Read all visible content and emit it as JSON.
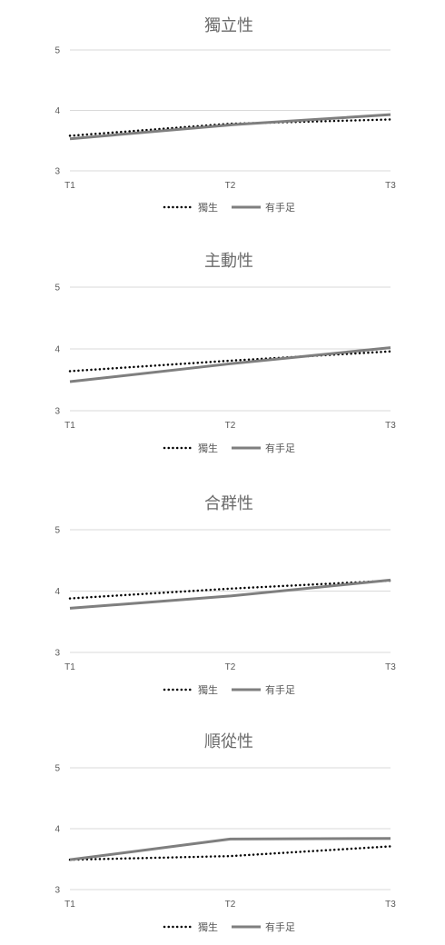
{
  "chart_data": [
    {
      "type": "line",
      "title": "獨立性",
      "categories": [
        "T1",
        "T2",
        "T3"
      ],
      "ylim": [
        3,
        5
      ],
      "yticks": [
        "3",
        "4",
        "5"
      ],
      "grid": true,
      "legend_position": "bottom",
      "series": [
        {
          "name": "獨生",
          "values": [
            3.58,
            3.78,
            3.85
          ],
          "style": "dotted",
          "color": "#000000"
        },
        {
          "name": "有手足",
          "values": [
            3.53,
            3.76,
            3.93
          ],
          "style": "solid",
          "color": "#7f7f7f"
        }
      ]
    },
    {
      "type": "line",
      "title": "主動性",
      "categories": [
        "T1",
        "T2",
        "T3"
      ],
      "ylim": [
        3,
        5
      ],
      "yticks": [
        "3",
        "4",
        "5"
      ],
      "grid": true,
      "legend_position": "bottom",
      "series": [
        {
          "name": "獨生",
          "values": [
            3.64,
            3.81,
            3.96
          ],
          "style": "dotted",
          "color": "#000000"
        },
        {
          "name": "有手足",
          "values": [
            3.47,
            3.76,
            4.02
          ],
          "style": "solid",
          "color": "#7f7f7f"
        }
      ]
    },
    {
      "type": "line",
      "title": "合群性",
      "categories": [
        "T1",
        "T2",
        "T3"
      ],
      "ylim": [
        3,
        5
      ],
      "yticks": [
        "3",
        "4",
        "5"
      ],
      "grid": true,
      "legend_position": "bottom",
      "series": [
        {
          "name": "獨生",
          "values": [
            3.88,
            4.04,
            4.17
          ],
          "style": "dotted",
          "color": "#000000"
        },
        {
          "name": "有手足",
          "values": [
            3.72,
            3.92,
            4.18
          ],
          "style": "solid",
          "color": "#7f7f7f"
        }
      ]
    },
    {
      "type": "line",
      "title": "順從性",
      "categories": [
        "T1",
        "T2",
        "T3"
      ],
      "ylim": [
        3,
        5
      ],
      "yticks": [
        "3",
        "4",
        "5"
      ],
      "grid": true,
      "legend_position": "bottom",
      "series": [
        {
          "name": "獨生",
          "values": [
            3.49,
            3.55,
            3.71
          ],
          "style": "dotted",
          "color": "#000000"
        },
        {
          "name": "有手足",
          "values": [
            3.49,
            3.83,
            3.84
          ],
          "style": "solid",
          "color": "#7f7f7f"
        }
      ]
    }
  ]
}
